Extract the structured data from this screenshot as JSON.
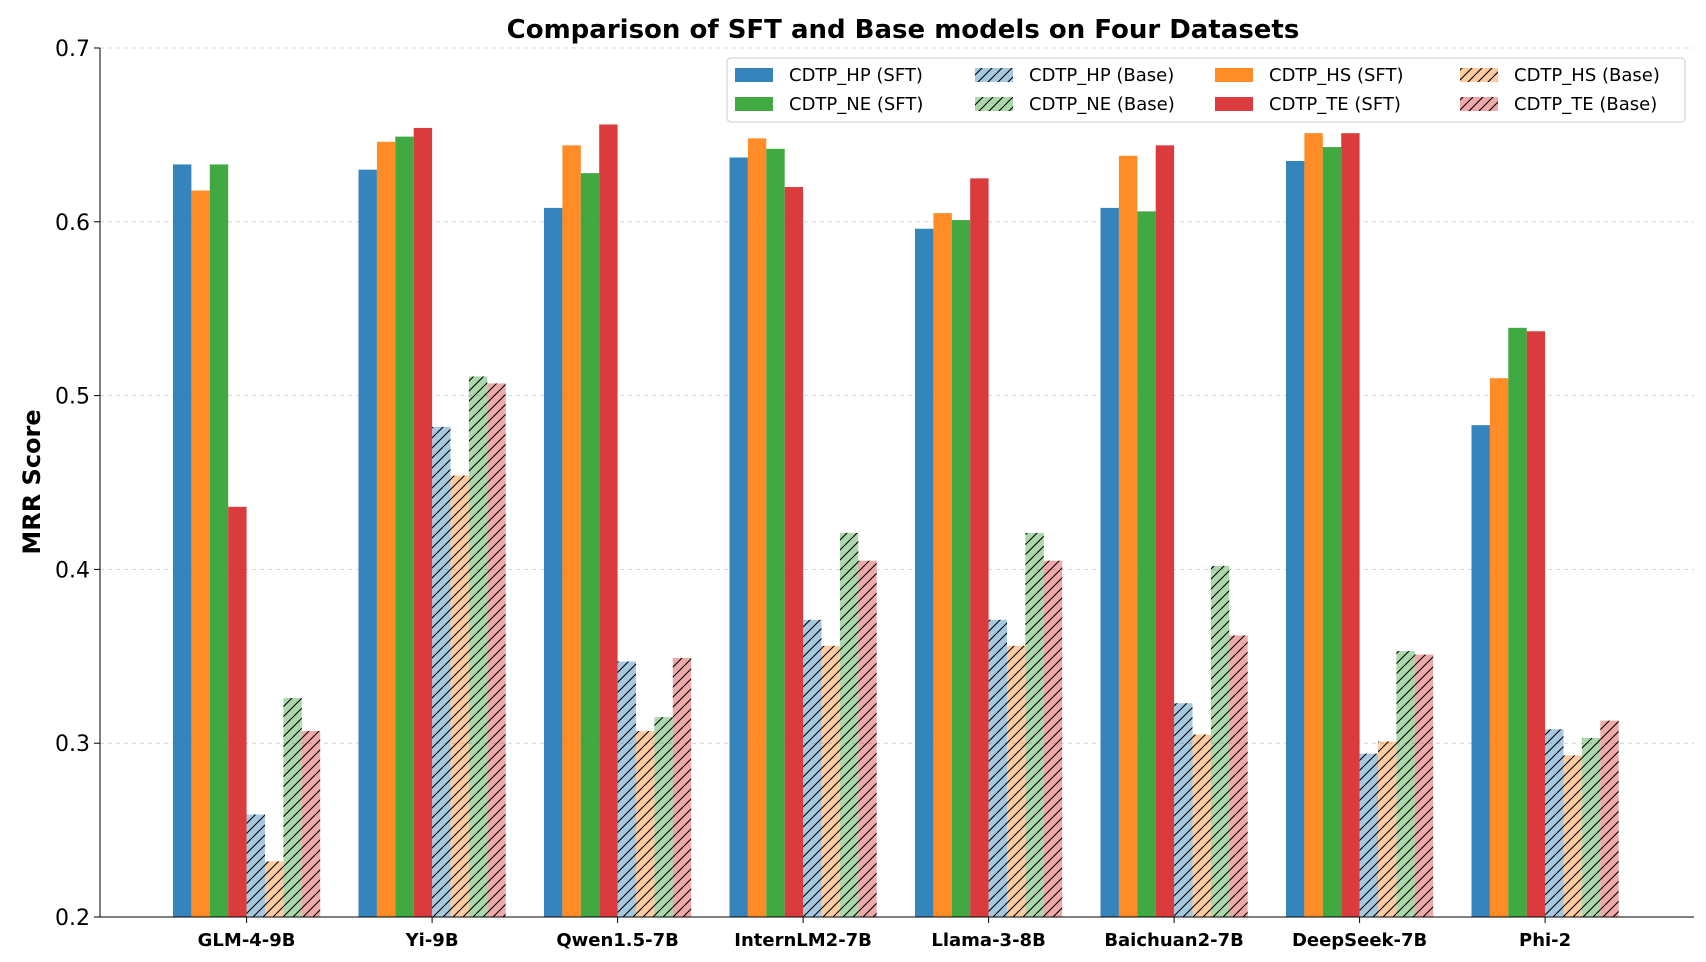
{
  "chart_data": {
    "type": "bar",
    "title": "Comparison of SFT and Base models on Four Datasets",
    "xlabel": "",
    "ylabel": "MRR Score",
    "ylim": [
      0.2,
      0.7
    ],
    "yticks": [
      0.2,
      0.3,
      0.4,
      0.5,
      0.6,
      0.7
    ],
    "ytick_labels": [
      "0.2",
      "0.3",
      "0.4",
      "0.5",
      "0.6",
      "0.7"
    ],
    "grid": "y-dashed",
    "legend_position": "top-right",
    "categories": [
      "GLM-4-9B",
      "Yi-9B",
      "Qwen1.5-7B",
      "InternLM2-7B",
      "Llama-3-8B",
      "Baichuan2-7B",
      "DeepSeek-7B",
      "Phi-2"
    ],
    "series": [
      {
        "name": "CDTP_HP (SFT)",
        "color": "#1f77b4",
        "hatch": false,
        "values": [
          0.633,
          0.63,
          0.608,
          0.637,
          0.596,
          0.608,
          0.635,
          0.483
        ]
      },
      {
        "name": "CDTP_HS (SFT)",
        "color": "#ff7f0e",
        "hatch": false,
        "values": [
          0.618,
          0.646,
          0.644,
          0.648,
          0.605,
          0.638,
          0.651,
          0.51
        ]
      },
      {
        "name": "CDTP_NE (SFT)",
        "color": "#2ca02c",
        "hatch": false,
        "values": [
          0.633,
          0.649,
          0.628,
          0.642,
          0.601,
          0.606,
          0.643,
          0.539
        ]
      },
      {
        "name": "CDTP_TE (SFT)",
        "color": "#d62728",
        "hatch": false,
        "values": [
          0.436,
          0.654,
          0.656,
          0.62,
          0.625,
          0.644,
          0.651,
          0.537
        ]
      },
      {
        "name": "CDTP_HP (Base)",
        "color": "#1f77b4",
        "hatch": true,
        "values": [
          0.259,
          0.482,
          0.347,
          0.371,
          0.371,
          0.323,
          0.294,
          0.308
        ]
      },
      {
        "name": "CDTP_HS (Base)",
        "color": "#ff7f0e",
        "hatch": true,
        "values": [
          0.232,
          0.454,
          0.307,
          0.356,
          0.356,
          0.305,
          0.301,
          0.293
        ]
      },
      {
        "name": "CDTP_NE (Base)",
        "color": "#2ca02c",
        "hatch": true,
        "values": [
          0.326,
          0.511,
          0.315,
          0.421,
          0.421,
          0.402,
          0.353,
          0.303
        ]
      },
      {
        "name": "CDTP_TE (Base)",
        "color": "#d62728",
        "hatch": true,
        "values": [
          0.307,
          0.507,
          0.349,
          0.405,
          0.405,
          0.362,
          0.351,
          0.313
        ]
      }
    ],
    "legend_order": [
      0,
      2,
      4,
      6,
      1,
      3,
      5,
      7
    ]
  }
}
